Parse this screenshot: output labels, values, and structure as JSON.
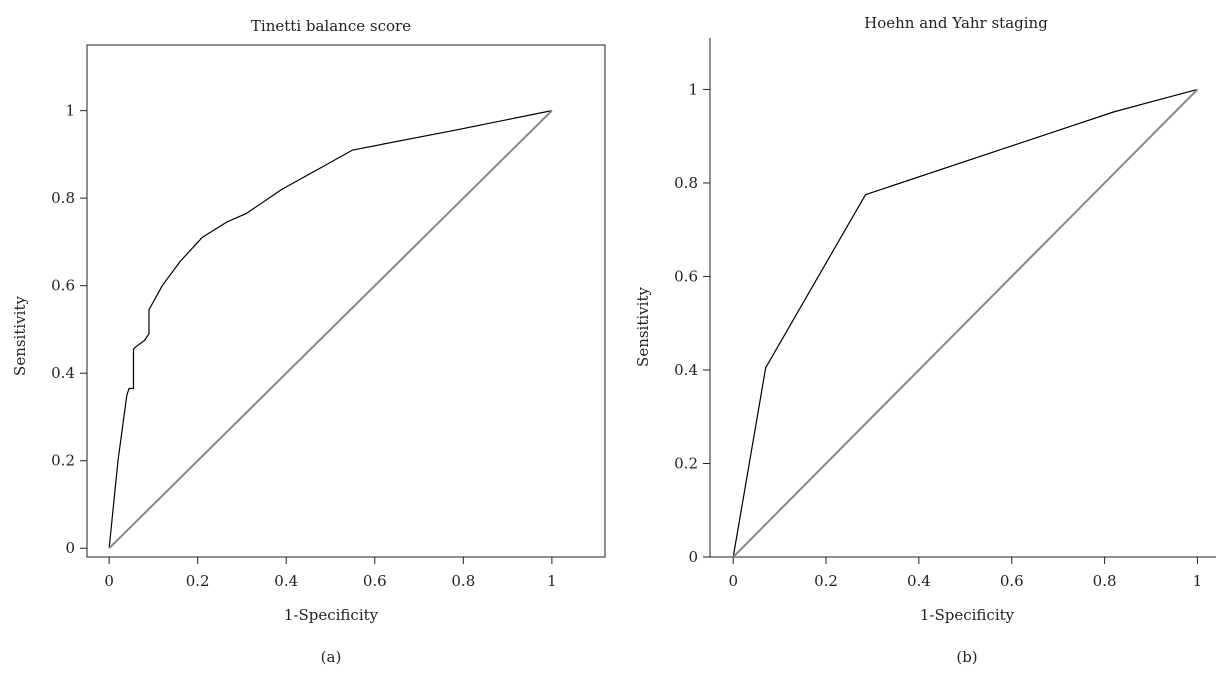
{
  "chart_data": [
    {
      "type": "line",
      "title": "Tinetti balance score",
      "caption": "(a)",
      "xlabel": "1-Specificity",
      "ylabel": "Sensitivity",
      "xlim": [
        -0.05,
        1.12
      ],
      "ylim": [
        -0.02,
        1.15
      ],
      "xticks": [
        0,
        0.2,
        0.4,
        0.6,
        0.8,
        1
      ],
      "yticks": [
        0,
        0.2,
        0.4,
        0.6,
        0.8,
        1
      ],
      "xtick_labels": [
        "0",
        "0.2",
        "0.4",
        "0.6",
        "0.8",
        "1"
      ],
      "ytick_labels": [
        "0",
        "0.2",
        "0.4",
        "0.6",
        "0.8",
        "1"
      ],
      "frame": "box",
      "grid": false,
      "series": [
        {
          "color": "#000000",
          "x": [
            0,
            0.02,
            0.04,
            0.045,
            0.055,
            0.055,
            0.06,
            0.08,
            0.09,
            0.09,
            0.12,
            0.16,
            0.21,
            0.265,
            0.31,
            0.39,
            0.47,
            0.55,
            0.78,
            1
          ],
          "y": [
            0,
            0.2,
            0.35,
            0.365,
            0.365,
            0.455,
            0.46,
            0.475,
            0.49,
            0.545,
            0.6,
            0.655,
            0.71,
            0.745,
            0.765,
            0.82,
            0.865,
            0.91,
            0.955,
            1
          ]
        },
        {
          "color": "#888888",
          "x": [
            0,
            1
          ],
          "y": [
            0,
            1
          ]
        }
      ]
    },
    {
      "type": "line",
      "title": "Hoehn and Yahr staging",
      "caption": "(b)",
      "xlabel": "1-Specificity",
      "ylabel": "Sensitivity",
      "xlim": [
        -0.05,
        1.04
      ],
      "ylim": [
        0,
        1.11
      ],
      "xticks": [
        0,
        0.2,
        0.4,
        0.6,
        0.8,
        1
      ],
      "yticks": [
        0,
        0.2,
        0.4,
        0.6,
        0.8,
        1
      ],
      "xtick_labels": [
        "0",
        "0.2",
        "0.4",
        "0.6",
        "0.8",
        "1"
      ],
      "ytick_labels": [
        "0",
        "0.2",
        "0.4",
        "0.6",
        "0.8",
        "1"
      ],
      "frame": "left-bottom",
      "grid": false,
      "series": [
        {
          "color": "#000000",
          "x": [
            0,
            0.07,
            0.285,
            0.82,
            1
          ],
          "y": [
            0,
            0.405,
            0.775,
            0.952,
            1
          ]
        },
        {
          "color": "#888888",
          "x": [
            0,
            1
          ],
          "y": [
            0,
            1
          ]
        }
      ]
    }
  ]
}
